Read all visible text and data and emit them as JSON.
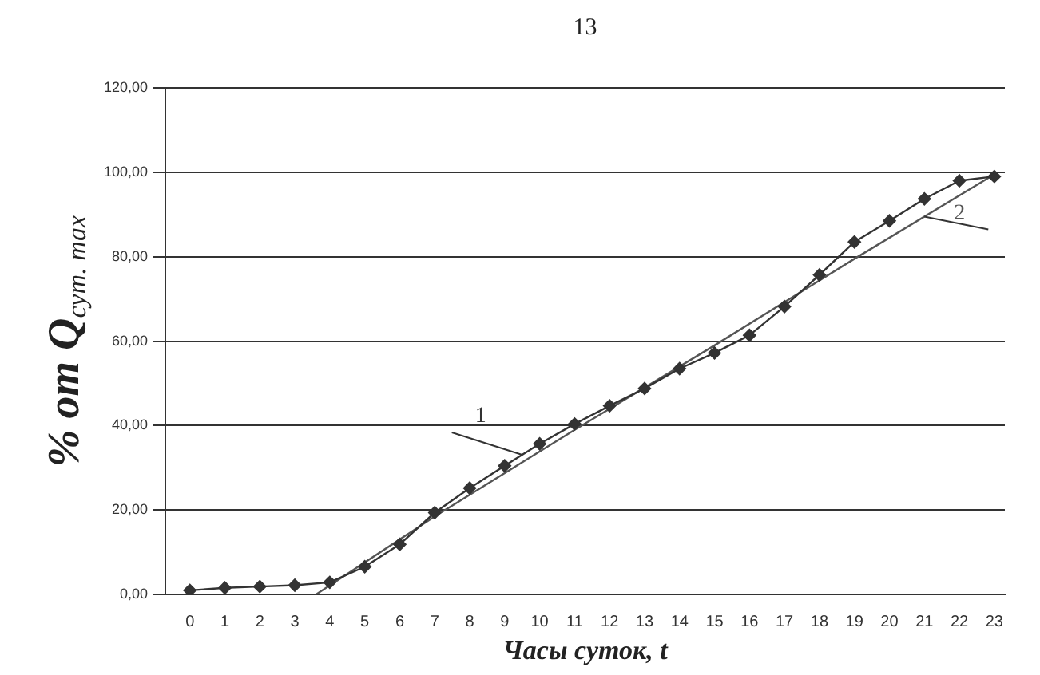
{
  "chart_data": {
    "type": "line",
    "xlabel": "Часы суток, t",
    "ylabel": "% от Q$_{сут. max}$",
    "annotations": [
      "13"
    ],
    "x": [
      0,
      1,
      2,
      3,
      4,
      5,
      6,
      7,
      8,
      9,
      10,
      11,
      12,
      13,
      14,
      15,
      16,
      17,
      18,
      19,
      20,
      21,
      22,
      23
    ],
    "series": [
      {
        "type": "line",
        "name": "1",
        "marker": "diamond",
        "color": "#333333",
        "values": [
          1,
          1.6,
          1.9,
          2.2,
          2.9,
          6.6,
          11.9,
          19.4,
          25.2,
          30.5,
          35.7,
          40.4,
          44.7,
          48.8,
          53.5,
          57.2,
          61.4,
          68.2,
          75.7,
          83.5,
          88.5,
          93.7,
          98,
          99
        ]
      },
      {
        "type": "line",
        "name": "2",
        "color": "#555555",
        "x": [
          3.6,
          7,
          11,
          15,
          19,
          23
        ],
        "values": [
          0,
          18.5,
          39,
          59,
          79.5,
          99.5
        ]
      }
    ],
    "xlim": [
      -0.7,
      23.3
    ],
    "xticks": [
      0,
      1,
      2,
      3,
      4,
      5,
      6,
      7,
      8,
      9,
      10,
      11,
      12,
      13,
      14,
      15,
      16,
      17,
      18,
      19,
      20,
      21,
      22,
      23
    ],
    "ylim": [
      0,
      120
    ],
    "yticks": [
      {
        "value": 0,
        "label": "0,00"
      },
      {
        "value": 20,
        "label": "20,00"
      },
      {
        "value": 40,
        "label": "40,00"
      },
      {
        "value": 60,
        "label": "60,00"
      },
      {
        "value": 80,
        "label": "80,00"
      },
      {
        "value": 100,
        "label": "100,00"
      },
      {
        "value": 120,
        "label": "120,00"
      }
    ],
    "grid": "y",
    "legend": false,
    "line_style": "solid"
  }
}
